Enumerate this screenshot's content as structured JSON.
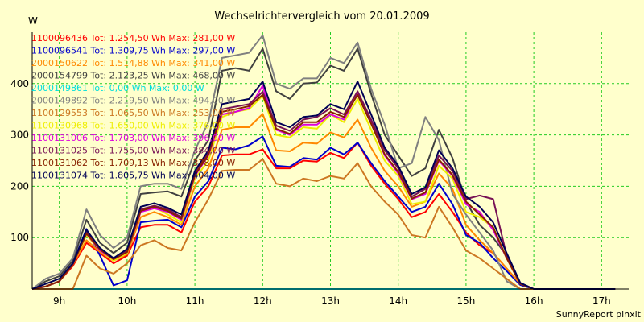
{
  "chart_data": {
    "type": "line",
    "title": "Wechselrichtervergleich vom 20.01.2009",
    "ylabel": "W",
    "xlabel": "",
    "footer": "SunnyReport pinxit",
    "ylim": [
      0,
      500
    ],
    "xlim": [
      8.6,
      17.4
    ],
    "yticks": [
      100,
      200,
      300,
      400
    ],
    "xticks": [
      {
        "value": 9,
        "label": "9h"
      },
      {
        "value": 10,
        "label": "10h"
      },
      {
        "value": 11,
        "label": "11h"
      },
      {
        "value": 12,
        "label": "12h"
      },
      {
        "value": 13,
        "label": "13h"
      },
      {
        "value": 14,
        "label": "14h"
      },
      {
        "value": 15,
        "label": "15h"
      },
      {
        "value": 16,
        "label": "16h"
      },
      {
        "value": 17,
        "label": "17h"
      }
    ],
    "grid": true,
    "x": [
      8.6,
      8.8,
      9.0,
      9.2,
      9.4,
      9.6,
      9.8,
      10.0,
      10.2,
      10.4,
      10.6,
      10.8,
      11.0,
      11.2,
      11.4,
      11.6,
      11.8,
      12.0,
      12.2,
      12.4,
      12.6,
      12.8,
      13.0,
      13.2,
      13.4,
      13.6,
      13.8,
      14.0,
      14.2,
      14.4,
      14.6,
      14.8,
      15.0,
      15.2,
      15.4,
      15.6,
      15.8,
      16.0,
      16.2,
      16.4,
      16.6,
      16.8,
      17.0,
      17.2
    ],
    "series": [
      {
        "name": "1100096436 Tot: 1.254,50 Wh Max: 281,00 W",
        "color": "#ff0000",
        "values": [
          0,
          5,
          15,
          45,
          90,
          70,
          50,
          65,
          120,
          125,
          125,
          110,
          170,
          200,
          260,
          262,
          262,
          272,
          235,
          235,
          250,
          248,
          265,
          255,
          285,
          240,
          205,
          175,
          140,
          150,
          185,
          150,
          110,
          85,
          70,
          40,
          10,
          0,
          0,
          0,
          0,
          0,
          0,
          0
        ]
      },
      {
        "name": "1100096541 Tot: 1.309,75 Wh Max: 297,00 W",
        "color": "#0000cc",
        "values": [
          0,
          5,
          15,
          50,
          117,
          65,
          7,
          17,
          130,
          133,
          135,
          120,
          180,
          210,
          275,
          272,
          280,
          297,
          240,
          238,
          255,
          252,
          275,
          262,
          285,
          245,
          210,
          180,
          150,
          160,
          205,
          165,
          105,
          90,
          60,
          35,
          8,
          0,
          0,
          0,
          0,
          0,
          0,
          0
        ]
      },
      {
        "name": "2000150622 Tot: 1.514,88 Wh Max: 341,00 W",
        "color": "#ff8800",
        "values": [
          0,
          5,
          15,
          48,
          95,
          72,
          55,
          68,
          140,
          150,
          140,
          125,
          200,
          235,
          310,
          315,
          315,
          341,
          270,
          268,
          285,
          283,
          305,
          295,
          330,
          275,
          230,
          200,
          160,
          170,
          225,
          195,
          125,
          95,
          70,
          40,
          10,
          0,
          0,
          0,
          0,
          0,
          0,
          0
        ]
      },
      {
        "name": "2000154799 Tot: 2.123,25 Wh Max: 468,00 W",
        "color": "#404040",
        "values": [
          0,
          15,
          25,
          55,
          135,
          90,
          70,
          90,
          185,
          188,
          190,
          180,
          250,
          290,
          425,
          430,
          425,
          468,
          385,
          370,
          400,
          402,
          435,
          425,
          468,
          380,
          300,
          260,
          220,
          235,
          310,
          255,
          170,
          125,
          100,
          65,
          10,
          0,
          0,
          0,
          0,
          0,
          0,
          0
        ]
      },
      {
        "name": "2000149861 Tot: 0,00 Wh Max: 0,00 W",
        "color": "#00dddd",
        "values": [
          0,
          0,
          0,
          0,
          0,
          0,
          0,
          0,
          0,
          0,
          0,
          0,
          0,
          0,
          0,
          0,
          0,
          0,
          0,
          0,
          0,
          0,
          0,
          0,
          0,
          0,
          0,
          0,
          0,
          0,
          0,
          0,
          0,
          0,
          0,
          0,
          0,
          0,
          0,
          0,
          0,
          0,
          0,
          0
        ]
      },
      {
        "name": "2000149892 Tot: 2.219,50 Wh Max: 494,00 W",
        "color": "#808080",
        "values": [
          0,
          20,
          30,
          60,
          155,
          105,
          80,
          100,
          200,
          205,
          205,
          195,
          270,
          325,
          450,
          455,
          460,
          494,
          400,
          390,
          410,
          410,
          450,
          440,
          480,
          390,
          320,
          235,
          245,
          335,
          290,
          185,
          145,
          110,
          75,
          15,
          0,
          0,
          0,
          0,
          0,
          0,
          0,
          0
        ]
      },
      {
        "name": "1100129553 Tot: 1.065,50 Wh Max: 253,00 W",
        "color": "#cc7722",
        "values": [
          0,
          0,
          0,
          0,
          65,
          40,
          30,
          50,
          85,
          95,
          80,
          75,
          130,
          175,
          230,
          232,
          232,
          253,
          205,
          200,
          215,
          210,
          220,
          215,
          245,
          200,
          170,
          145,
          105,
          100,
          160,
          120,
          75,
          60,
          40,
          20,
          0,
          0,
          0,
          0,
          0,
          0,
          0,
          0
        ]
      },
      {
        "name": "1100130968 Tot: 1.650,00 Wh Max: 376,00 W",
        "color": "#eeee00",
        "values": [
          0,
          5,
          15,
          48,
          105,
          75,
          55,
          70,
          150,
          160,
          145,
          130,
          215,
          250,
          335,
          345,
          350,
          376,
          300,
          295,
          315,
          312,
          340,
          325,
          370,
          310,
          250,
          220,
          165,
          170,
          240,
          215,
          150,
          140,
          120,
          60,
          10,
          0,
          0,
          0,
          0,
          0,
          0,
          0
        ]
      },
      {
        "name": "1100131006 Tot: 1.703,00 Wh Max: 396,00 W",
        "color": "#dd00dd",
        "values": [
          0,
          5,
          15,
          48,
          108,
          75,
          58,
          72,
          150,
          157,
          150,
          135,
          220,
          260,
          340,
          345,
          352,
          396,
          310,
          300,
          320,
          320,
          340,
          330,
          380,
          325,
          260,
          225,
          175,
          185,
          250,
          220,
          165,
          150,
          115,
          60,
          10,
          0,
          0,
          0,
          0,
          0,
          0,
          0
        ]
      },
      {
        "name": "1100131025 Tot: 1.755,00 Wh Max: 384,00 W",
        "color": "#771155",
        "values": [
          0,
          5,
          15,
          50,
          110,
          78,
          60,
          75,
          155,
          162,
          155,
          140,
          225,
          265,
          350,
          355,
          360,
          384,
          318,
          308,
          330,
          335,
          352,
          340,
          385,
          330,
          270,
          235,
          180,
          195,
          260,
          230,
          175,
          182,
          175,
          65,
          10,
          0,
          0,
          0,
          0,
          0,
          0,
          0
        ]
      },
      {
        "name": "1100131062 Tot: 1.709,13 Wh Max: 378,00 W",
        "color": "#882200",
        "values": [
          0,
          5,
          15,
          48,
          108,
          77,
          58,
          72,
          152,
          160,
          152,
          137,
          222,
          262,
          345,
          350,
          356,
          378,
          312,
          302,
          325,
          325,
          345,
          335,
          378,
          322,
          262,
          228,
          176,
          188,
          252,
          222,
          170,
          145,
          120,
          60,
          10,
          0,
          0,
          0,
          0,
          0,
          0,
          0
        ]
      },
      {
        "name": "1100131074 Tot: 1.805,75 Wh Max: 404,00 W",
        "color": "#000055",
        "values": [
          0,
          10,
          20,
          50,
          115,
          80,
          60,
          78,
          160,
          167,
          158,
          145,
          230,
          270,
          360,
          365,
          370,
          404,
          325,
          315,
          335,
          338,
          360,
          350,
          404,
          340,
          275,
          240,
          185,
          198,
          270,
          235,
          180,
          160,
          130,
          70,
          12,
          0,
          0,
          0,
          0,
          0,
          0,
          0
        ]
      }
    ]
  }
}
